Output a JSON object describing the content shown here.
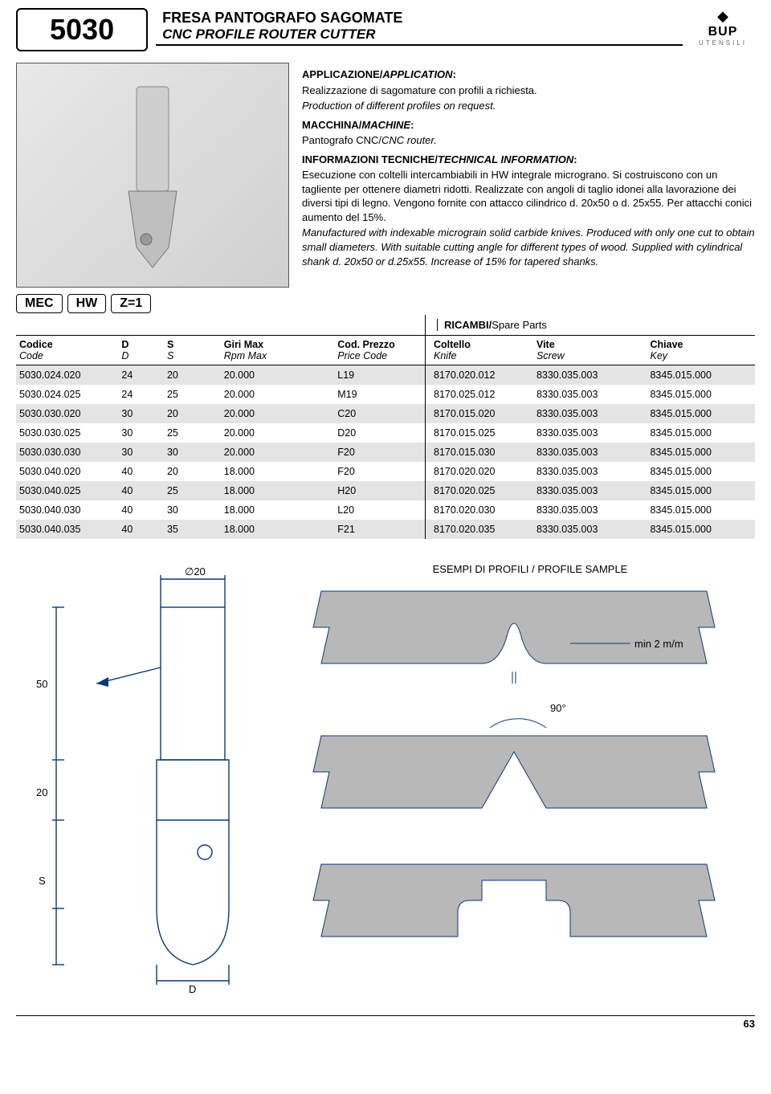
{
  "header": {
    "code": "5030",
    "title_it": "FRESA PANTOGRAFO SAGOMATE",
    "title_en": "CNC PROFILE ROUTER CUTTER",
    "logo_name": "BUP",
    "logo_sub": "UTENSILI"
  },
  "info": {
    "app_h_it": "APPLICAZIONE/",
    "app_h_en": "APPLICATION",
    "app_it": "Realizzazione di sagomature con profili a richiesta.",
    "app_en": "Production of different profiles on request.",
    "mac_h_it": "MACCHINA/",
    "mac_h_en": "MACHINE",
    "mac_it": "Pantografo CNC/",
    "mac_en": "CNC router.",
    "tech_h_it": "INFORMAZIONI TECNICHE/",
    "tech_h_en": "TECHNICAL INFORMATION",
    "tech_it": "Esecuzione con coltelli intercambiabili in HW integrale micrograno. Si costruiscono con un tagliente per ottenere diametri ridotti. Realizzate con angoli di taglio idonei alla lavorazione dei diversi tipi di legno. Vengono fornite con attacco cilindrico d. 20x50 o d. 25x55. Per attacchi conici aumento del 15%.",
    "tech_en": "Manufactured with indexable micrograin solid carbide knives. Produced with only one cut to obtain small diameters. With suitable cutting angle for different types of wood. Supplied with cylindrical shank d. 20x50 or d.25x55. Increase of 15% for tapered shanks."
  },
  "badges": [
    "MEC",
    "HW",
    "Z=1"
  ],
  "ricambi_it": "RICAMBI/",
  "ricambi_en": "Spare Parts",
  "table": {
    "headers": {
      "code_it": "Codice",
      "code_en": "Code",
      "d_it": "D",
      "d_en": "D",
      "s_it": "S",
      "s_en": "S",
      "rpm_it": "Giri Max",
      "rpm_en": "Rpm Max",
      "price_it": "Cod. Prezzo",
      "price_en": "Price Code",
      "knife_it": "Coltello",
      "knife_en": "Knife",
      "screw_it": "Vite",
      "screw_en": "Screw",
      "key_it": "Chiave",
      "key_en": "Key"
    },
    "rows": [
      {
        "code": "5030.024.020",
        "d": "24",
        "s": "20",
        "rpm": "20.000",
        "price": "L19",
        "knife": "8170.020.012",
        "screw": "8330.035.003",
        "key": "8345.015.000"
      },
      {
        "code": "5030.024.025",
        "d": "24",
        "s": "25",
        "rpm": "20.000",
        "price": "M19",
        "knife": "8170.025.012",
        "screw": "8330.035.003",
        "key": "8345.015.000"
      },
      {
        "code": "5030.030.020",
        "d": "30",
        "s": "20",
        "rpm": "20.000",
        "price": "C20",
        "knife": "8170.015.020",
        "screw": "8330.035.003",
        "key": "8345.015.000"
      },
      {
        "code": "5030.030.025",
        "d": "30",
        "s": "25",
        "rpm": "20.000",
        "price": "D20",
        "knife": "8170.015.025",
        "screw": "8330.035.003",
        "key": "8345.015.000"
      },
      {
        "code": "5030.030.030",
        "d": "30",
        "s": "30",
        "rpm": "20.000",
        "price": "F20",
        "knife": "8170.015.030",
        "screw": "8330.035.003",
        "key": "8345.015.000"
      },
      {
        "code": "5030.040.020",
        "d": "40",
        "s": "20",
        "rpm": "18.000",
        "price": "F20",
        "knife": "8170.020.020",
        "screw": "8330.035.003",
        "key": "8345.015.000"
      },
      {
        "code": "5030.040.025",
        "d": "40",
        "s": "25",
        "rpm": "18.000",
        "price": "H20",
        "knife": "8170.020.025",
        "screw": "8330.035.003",
        "key": "8345.015.000"
      },
      {
        "code": "5030.040.030",
        "d": "40",
        "s": "30",
        "rpm": "18.000",
        "price": "L20",
        "knife": "8170.020.030",
        "screw": "8330.035.003",
        "key": "8345.015.000"
      },
      {
        "code": "5030.040.035",
        "d": "40",
        "s": "35",
        "rpm": "18.000",
        "price": "F21",
        "knife": "8170.020.035",
        "screw": "8330.035.003",
        "key": "8345.015.000"
      }
    ]
  },
  "diagram": {
    "d20_label": "∅20",
    "dim_50": "50",
    "dim_20": "20",
    "dim_s": "S",
    "dim_d": "D",
    "stroke": "#0a3a7a",
    "stroke_w": 1.4
  },
  "profiles": {
    "title": "ESEMPI DI PROFILI / PROFILE SAMPLE",
    "min_label": "min 2 m/m",
    "angle_label": "90°",
    "fill": "#b8b8b8",
    "stroke": "#0a3a7a"
  },
  "page_number": "63"
}
